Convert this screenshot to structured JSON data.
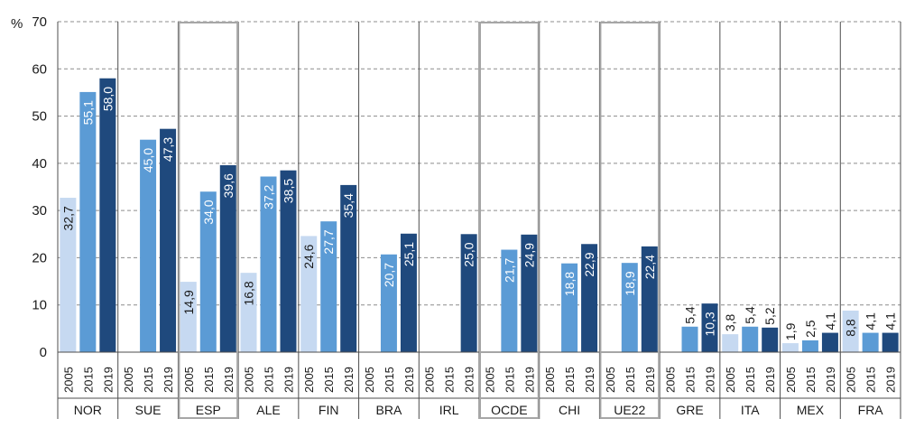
{
  "chart_data": {
    "type": "bar",
    "y_unit_label": "%",
    "ylim": [
      0,
      70
    ],
    "yticks": [
      "0",
      "10",
      "20",
      "30",
      "40",
      "50",
      "60",
      "70"
    ],
    "grid": true,
    "years": [
      "2005",
      "2015",
      "2019"
    ],
    "groups": [
      {
        "name": "NOR",
        "values": [
          32.7,
          55.1,
          58.0
        ],
        "labels": [
          "32,7",
          "55,1",
          "58,0"
        ],
        "highlight": false
      },
      {
        "name": "SUE",
        "values": [
          null,
          45.0,
          47.3
        ],
        "labels": [
          "",
          "45,0",
          "47,3"
        ],
        "highlight": false
      },
      {
        "name": "ESP",
        "values": [
          14.9,
          34.0,
          39.6
        ],
        "labels": [
          "14,9",
          "34,0",
          "39,6"
        ],
        "highlight": true
      },
      {
        "name": "ALE",
        "values": [
          16.8,
          37.2,
          38.5
        ],
        "labels": [
          "16,8",
          "37,2",
          "38,5"
        ],
        "highlight": false
      },
      {
        "name": "FIN",
        "values": [
          24.6,
          27.7,
          35.4
        ],
        "labels": [
          "24,6",
          "27,7",
          "35,4"
        ],
        "highlight": false
      },
      {
        "name": "BRA",
        "values": [
          null,
          20.7,
          25.1
        ],
        "labels": [
          "",
          "20,7",
          "25,1"
        ],
        "highlight": false
      },
      {
        "name": "IRL",
        "values": [
          null,
          null,
          25.0
        ],
        "labels": [
          "",
          "",
          "25,0"
        ],
        "highlight": false
      },
      {
        "name": "OCDE",
        "values": [
          null,
          21.7,
          24.9
        ],
        "labels": [
          "",
          "21,7",
          "24,9"
        ],
        "highlight": true
      },
      {
        "name": "CHI",
        "values": [
          null,
          18.8,
          22.9
        ],
        "labels": [
          "",
          "18,8",
          "22,9"
        ],
        "highlight": false
      },
      {
        "name": "UE22",
        "values": [
          null,
          18.9,
          22.4
        ],
        "labels": [
          "",
          "18,9",
          "22,4"
        ],
        "highlight": true
      },
      {
        "name": "GRE",
        "values": [
          null,
          5.4,
          10.3
        ],
        "labels": [
          "",
          "5,4",
          "10,3"
        ],
        "highlight": false
      },
      {
        "name": "ITA",
        "values": [
          3.8,
          5.4,
          5.2
        ],
        "labels": [
          "3,8",
          "5,4",
          "5,2"
        ],
        "highlight": false
      },
      {
        "name": "MEX",
        "values": [
          1.9,
          2.5,
          4.1
        ],
        "labels": [
          "1,9",
          "2,5",
          "4,1"
        ],
        "highlight": false
      },
      {
        "name": "FRA",
        "values": [
          8.8,
          4.1,
          4.1
        ],
        "labels": [
          "8,8",
          "4,1",
          "4,1"
        ],
        "highlight": false
      }
    ],
    "colors": {
      "2005": "#c6d9f1",
      "2015": "#5b9bd5",
      "2019": "#1f497d",
      "grid": "#8c8c8c",
      "highlight_box": "#a6a6a6"
    }
  }
}
